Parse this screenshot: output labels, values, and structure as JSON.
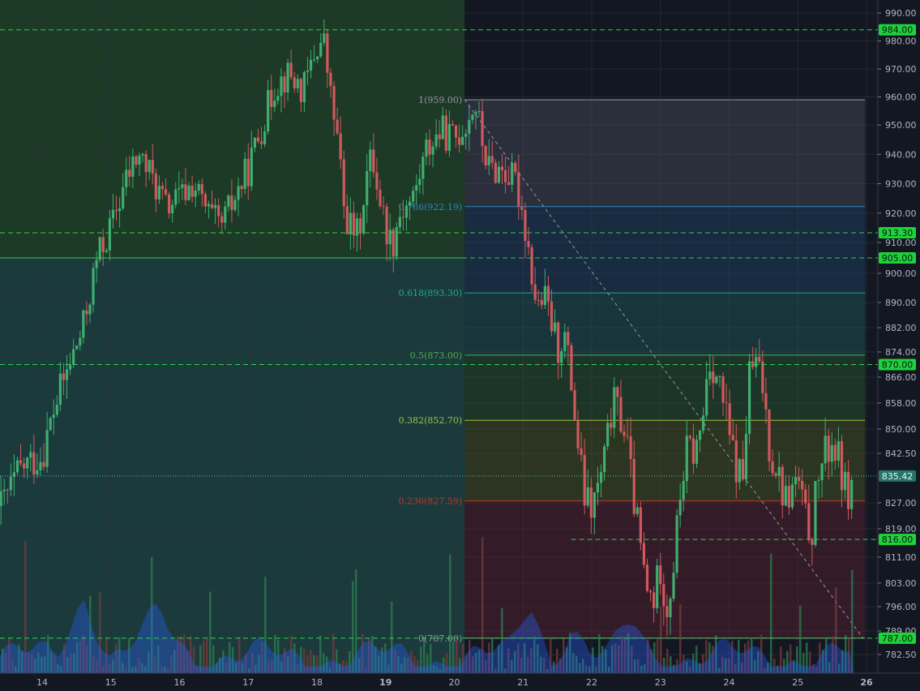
{
  "chart_data": {
    "type": "candlestick",
    "instrument_note": "",
    "x_ticks": [
      "14",
      "15",
      "16",
      "17",
      "18",
      "19",
      "20",
      "21",
      "22",
      "23",
      "24",
      "25",
      "26"
    ],
    "y_ticks": [
      "990.00",
      "980.00",
      "970.00",
      "960.00",
      "950.00",
      "940.00",
      "930.00",
      "920.00",
      "910.00",
      "900.00",
      "890.00",
      "882.00",
      "874.00",
      "866.00",
      "858.00",
      "850.00",
      "842.50",
      "827.00",
      "819.00",
      "811.00",
      "803.00",
      "796.00",
      "789.00",
      "782.50"
    ],
    "last_price": "835.42",
    "horizontal_levels": [
      {
        "label": "984.00",
        "value": 984.0
      },
      {
        "label": "913.30",
        "value": 913.3
      },
      {
        "label": "905.00",
        "value": 905.0
      },
      {
        "label": "870.00",
        "value": 870.0
      },
      {
        "label": "816.00",
        "value": 816.0
      },
      {
        "label": "787.00",
        "value": 787.0
      }
    ],
    "fibonacci": {
      "high": 959.0,
      "low": 787.0,
      "levels": [
        {
          "label": "1(959.00)",
          "value": 959.0,
          "color": "#9598a1"
        },
        {
          "label": "0.786(922.19)",
          "value": 922.19,
          "color": "#2e86c1"
        },
        {
          "label": "0.618(893.30)",
          "value": 893.3,
          "color": "#26a69a"
        },
        {
          "label": "0.5(873.00)",
          "value": 873.0,
          "color": "#4caf50"
        },
        {
          "label": "0.382(852.70)",
          "value": 852.7,
          "color": "#a5c23a"
        },
        {
          "label": "0.236(827.59)",
          "value": 827.59,
          "color": "#c0392b"
        },
        {
          "label": "0(787.00)",
          "value": 787.0,
          "color": "#9598a1"
        }
      ]
    },
    "close_path": [
      [
        13.4,
        826
      ],
      [
        13.7,
        838
      ],
      [
        14.0,
        842
      ],
      [
        14.2,
        858
      ],
      [
        14.4,
        870
      ],
      [
        14.6,
        882
      ],
      [
        14.8,
        905
      ],
      [
        15.0,
        915
      ],
      [
        15.2,
        930
      ],
      [
        15.4,
        940
      ],
      [
        15.6,
        932
      ],
      [
        15.8,
        922
      ],
      [
        16.0,
        925
      ],
      [
        16.2,
        930
      ],
      [
        16.4,
        920
      ],
      [
        16.6,
        915
      ],
      [
        16.8,
        925
      ],
      [
        17.0,
        935
      ],
      [
        17.2,
        950
      ],
      [
        17.4,
        965
      ],
      [
        17.6,
        968
      ],
      [
        17.8,
        962
      ],
      [
        18.0,
        978
      ],
      [
        18.1,
        980
      ],
      [
        18.2,
        960
      ],
      [
        18.3,
        945
      ],
      [
        18.4,
        920
      ],
      [
        18.5,
        915
      ],
      [
        18.6,
        912
      ],
      [
        18.7,
        930
      ],
      [
        18.8,
        940
      ],
      [
        19.0,
        915
      ],
      [
        19.1,
        910
      ],
      [
        19.2,
        920
      ],
      [
        19.4,
        925
      ],
      [
        19.6,
        942
      ],
      [
        19.8,
        948
      ],
      [
        20.0,
        945
      ],
      [
        20.2,
        952
      ],
      [
        20.3,
        958
      ],
      [
        20.4,
        945
      ],
      [
        20.5,
        935
      ],
      [
        20.7,
        935
      ],
      [
        20.9,
        930
      ],
      [
        21.0,
        920
      ],
      [
        21.1,
        905
      ],
      [
        21.2,
        888
      ],
      [
        21.3,
        892
      ],
      [
        21.4,
        885
      ],
      [
        21.5,
        875
      ],
      [
        21.6,
        880
      ],
      [
        21.7,
        865
      ],
      [
        21.8,
        845
      ],
      [
        21.9,
        828
      ],
      [
        22.0,
        825
      ],
      [
        22.1,
        832
      ],
      [
        22.2,
        842
      ],
      [
        22.3,
        858
      ],
      [
        22.4,
        855
      ],
      [
        22.5,
        848
      ],
      [
        22.6,
        830
      ],
      [
        22.7,
        815
      ],
      [
        22.8,
        800
      ],
      [
        22.9,
        798
      ],
      [
        23.0,
        808
      ],
      [
        23.1,
        795
      ],
      [
        23.2,
        810
      ],
      [
        23.3,
        832
      ],
      [
        23.4,
        845
      ],
      [
        23.5,
        842
      ],
      [
        23.6,
        850
      ],
      [
        23.7,
        872
      ],
      [
        23.8,
        868
      ],
      [
        23.9,
        860
      ],
      [
        24.0,
        848
      ],
      [
        24.1,
        838
      ],
      [
        24.2,
        835
      ],
      [
        24.3,
        868
      ],
      [
        24.4,
        870
      ],
      [
        24.5,
        862
      ],
      [
        24.6,
        842
      ],
      [
        24.7,
        838
      ],
      [
        24.8,
        828
      ],
      [
        24.9,
        830
      ],
      [
        25.0,
        835
      ],
      [
        25.1,
        822
      ],
      [
        25.2,
        818
      ],
      [
        25.3,
        836
      ],
      [
        25.4,
        842
      ],
      [
        25.5,
        846
      ],
      [
        25.6,
        840
      ],
      [
        25.7,
        830
      ],
      [
        25.8,
        832
      ],
      [
        25.9,
        835
      ]
    ]
  }
}
